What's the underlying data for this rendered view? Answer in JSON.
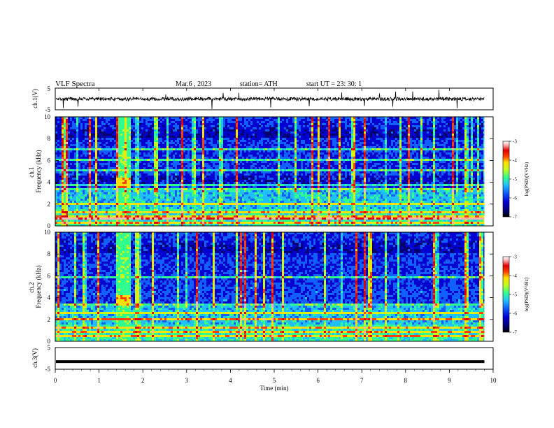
{
  "header": {
    "title": "VLF  Spectra",
    "date": "Mar.6  , 2023",
    "station": "station= ATH",
    "start": "start  UT  =    23: 30: 1"
  },
  "colors": {
    "colormap": [
      "#000000",
      "#000070",
      "#0000d0",
      "#1060ff",
      "#20c0ff",
      "#30ff90",
      "#c0ff20",
      "#ffe000",
      "#ff4000",
      "#e00000",
      "#ffb0b0",
      "#ffffff"
    ]
  },
  "chart_data": [
    {
      "type": "line",
      "panel": "ch1-waveform",
      "ylabel": "ch.1(V)",
      "ylim": [
        -5,
        5
      ],
      "yticks": [
        "5",
        "-5"
      ],
      "baseline": 0,
      "note_series": "noisy waveform near 0 V with occasional spikes"
    },
    {
      "type": "heatmap",
      "panel": "ch1-spectrogram",
      "ylabel": "ch.1\nFrequency  (kHz)",
      "ylim": [
        0,
        10
      ],
      "yticks": [
        "0",
        "2",
        "4",
        "6",
        "8",
        "10"
      ],
      "colorbar": {
        "label": "log(PSD)(V²/Hz)",
        "range": [
          -7,
          -3
        ],
        "ticks": [
          "-3",
          "-4",
          "-5",
          "-6",
          "-7"
        ]
      },
      "strong_burst": {
        "start_min": 1.35,
        "end_min": 1.7,
        "freq_khz": 4.0
      }
    },
    {
      "type": "heatmap",
      "panel": "ch2-spectrogram",
      "ylabel": "ch.2\nFrequency  (kHz)",
      "ylim": [
        0,
        10
      ],
      "yticks": [
        "0",
        "2",
        "4",
        "6",
        "8",
        "10"
      ],
      "colorbar": {
        "label": "log(PSD)(V²/Hz)",
        "range": [
          -7,
          -3
        ],
        "ticks": [
          "-3",
          "-4",
          "-5",
          "-6",
          "-7"
        ]
      },
      "strong_burst": {
        "start_min": 1.35,
        "end_min": 1.7,
        "freq_khz": 3.8
      }
    },
    {
      "type": "line",
      "panel": "ch3-waveform",
      "ylabel": "ch.3(V)",
      "ylim": [
        -5,
        5
      ],
      "yticks": [
        "5",
        "-5"
      ],
      "baseline": -1.5
    }
  ],
  "xaxis": {
    "label": "Time  (min)",
    "range": [
      0,
      10
    ],
    "ticks": [
      "0",
      "1",
      "2",
      "3",
      "4",
      "5",
      "6",
      "7",
      "8",
      "9",
      "10"
    ],
    "data_end_min": 9.8
  }
}
